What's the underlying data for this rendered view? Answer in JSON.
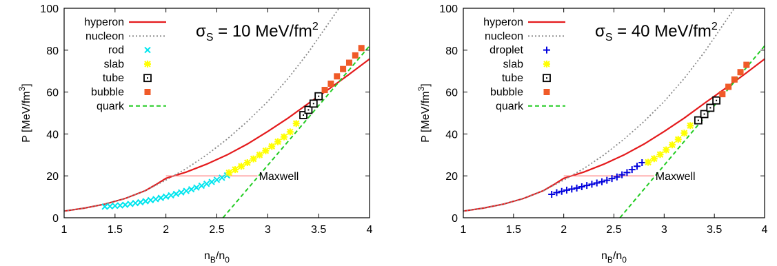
{
  "chart_data": [
    {
      "type": "line",
      "title": "σS = 10 MeV/fm2",
      "title_parts": {
        "sigma": "σ",
        "sub": "S",
        "text": " = 10 MeV/fm",
        "sup": "2"
      },
      "xlabel": {
        "base": "n",
        "sub1": "B",
        "mid": "/n",
        "sub2": "0"
      },
      "ylabel": {
        "text": "P [MeV/fm",
        "sup": "3",
        "close": "]"
      },
      "xlim": [
        1,
        4
      ],
      "ylim": [
        0,
        100
      ],
      "xticks": [
        "1",
        "1.5",
        "2",
        "2.5",
        "3",
        "3.5",
        "4"
      ],
      "yticks": [
        "0",
        "20",
        "40",
        "60",
        "80",
        "100"
      ],
      "grid": false,
      "legend_position": "top-left",
      "annotation": "Maxwell",
      "maxwell": {
        "x": [
          2.0,
          2.9
        ],
        "y": [
          20,
          20
        ]
      },
      "series": [
        {
          "name": "hyperon",
          "style": "line",
          "color": "#e41a1c",
          "x": [
            1.0,
            1.2,
            1.4,
            1.6,
            1.8,
            1.9,
            2.0,
            2.2,
            2.4,
            2.6,
            2.8,
            3.0,
            3.2,
            3.4,
            3.6,
            3.8,
            4.0
          ],
          "y": [
            3.2,
            4.6,
            6.5,
            9.2,
            13.0,
            15.8,
            18.8,
            21.8,
            25.6,
            30.0,
            35.2,
            41.2,
            47.6,
            54.6,
            61.4,
            68.5,
            75.8
          ]
        },
        {
          "name": "nucleon",
          "style": "dotted",
          "color": "#888888",
          "x": [
            1.0,
            1.2,
            1.4,
            1.6,
            1.8,
            2.0,
            2.2,
            2.4,
            2.6,
            2.8,
            3.0,
            3.2,
            3.4,
            3.6,
            3.7
          ],
          "y": [
            3.2,
            4.6,
            6.5,
            9.2,
            13.0,
            18.0,
            23.5,
            30.0,
            37.5,
            46.0,
            55.5,
            66.5,
            79.0,
            93.0,
            100.0
          ]
        },
        {
          "name": "rod",
          "style": "marker",
          "marker": "cross",
          "color": "#00e5ee",
          "x": [
            1.4,
            1.45,
            1.5,
            1.55,
            1.6,
            1.65,
            1.7,
            1.75,
            1.8,
            1.85,
            1.9,
            1.95,
            2.0,
            2.05,
            2.1,
            2.15,
            2.2,
            2.25,
            2.3,
            2.35,
            2.4,
            2.45,
            2.5,
            2.55,
            2.6
          ],
          "y": [
            5.3,
            5.5,
            5.7,
            5.9,
            6.2,
            6.6,
            7.0,
            7.4,
            7.9,
            8.4,
            8.9,
            9.5,
            10.1,
            10.7,
            11.4,
            12.1,
            12.8,
            13.6,
            14.4,
            15.3,
            16.2,
            17.1,
            18.1,
            19.1,
            20.2
          ]
        },
        {
          "name": "slab",
          "style": "marker",
          "marker": "star",
          "color": "#ffff00",
          "x": [
            2.62,
            2.68,
            2.74,
            2.8,
            2.86,
            2.92,
            2.98,
            3.04,
            3.1,
            3.16,
            3.22,
            3.28
          ],
          "y": [
            21.5,
            23.0,
            24.6,
            26.3,
            28.1,
            30.0,
            32.0,
            34.1,
            36.3,
            38.6,
            41.0,
            45.0
          ]
        },
        {
          "name": "tube",
          "style": "marker",
          "marker": "square",
          "color": "#000000",
          "x": [
            3.35,
            3.4,
            3.45,
            3.5
          ],
          "y": [
            49.0,
            51.5,
            54.5,
            58.0
          ]
        },
        {
          "name": "bubble",
          "style": "marker",
          "marker": "filled-square",
          "color": "#f05a28",
          "x": [
            3.56,
            3.62,
            3.68,
            3.74,
            3.8,
            3.86,
            3.92
          ],
          "y": [
            61.0,
            64.0,
            67.5,
            71.0,
            74.0,
            77.5,
            81.0
          ]
        },
        {
          "name": "quark",
          "style": "dashed",
          "color": "#22cc22",
          "x": [
            2.56,
            4.0
          ],
          "y": [
            0,
            82
          ]
        }
      ]
    },
    {
      "type": "line",
      "title": "σS = 40 MeV/fm2",
      "title_parts": {
        "sigma": "σ",
        "sub": "S",
        "text": " = 40 MeV/fm",
        "sup": "2"
      },
      "xlabel": {
        "base": "n",
        "sub1": "B",
        "mid": "/n",
        "sub2": "0"
      },
      "ylabel": {
        "text": "P [MeV/fm",
        "sup": "3",
        "close": "]"
      },
      "xlim": [
        1,
        4
      ],
      "ylim": [
        0,
        100
      ],
      "xticks": [
        "1",
        "1.5",
        "2",
        "2.5",
        "3",
        "3.5",
        "4"
      ],
      "yticks": [
        "0",
        "20",
        "40",
        "60",
        "80",
        "100"
      ],
      "grid": false,
      "legend_position": "top-left",
      "annotation": "Maxwell",
      "maxwell": {
        "x": [
          2.0,
          2.9
        ],
        "y": [
          20,
          20
        ]
      },
      "series": [
        {
          "name": "hyperon",
          "style": "line",
          "color": "#e41a1c",
          "x": [
            1.0,
            1.2,
            1.4,
            1.6,
            1.8,
            1.9,
            2.0,
            2.2,
            2.4,
            2.6,
            2.8,
            3.0,
            3.2,
            3.4,
            3.6,
            3.8,
            4.0
          ],
          "y": [
            3.2,
            4.6,
            6.5,
            9.2,
            13.0,
            15.8,
            18.8,
            21.8,
            25.6,
            30.0,
            35.2,
            41.2,
            47.6,
            54.6,
            61.4,
            68.5,
            75.8
          ]
        },
        {
          "name": "nucleon",
          "style": "dotted",
          "color": "#888888",
          "x": [
            1.0,
            1.2,
            1.4,
            1.6,
            1.8,
            2.0,
            2.2,
            2.4,
            2.6,
            2.8,
            3.0,
            3.2,
            3.4,
            3.6,
            3.7
          ],
          "y": [
            3.2,
            4.6,
            6.5,
            9.2,
            13.0,
            18.0,
            23.5,
            30.0,
            37.5,
            46.0,
            55.5,
            66.5,
            79.0,
            93.0,
            100.0
          ]
        },
        {
          "name": "droplet",
          "style": "marker",
          "marker": "plus",
          "color": "#0000dd",
          "x": [
            1.88,
            1.93,
            1.98,
            2.03,
            2.08,
            2.13,
            2.18,
            2.23,
            2.28,
            2.33,
            2.38,
            2.43,
            2.48,
            2.53,
            2.58,
            2.63,
            2.68,
            2.73,
            2.78
          ],
          "y": [
            11.2,
            12.0,
            12.6,
            13.2,
            13.7,
            14.2,
            14.8,
            15.4,
            16.0,
            16.6,
            17.2,
            17.9,
            18.7,
            19.5,
            20.5,
            21.6,
            23.0,
            24.6,
            26.3
          ]
        },
        {
          "name": "slab",
          "style": "marker",
          "marker": "star",
          "color": "#ffff00",
          "x": [
            2.84,
            2.9,
            2.96,
            3.02,
            3.08,
            3.14,
            3.2,
            3.26
          ],
          "y": [
            26.5,
            28.2,
            30.2,
            32.4,
            34.8,
            37.4,
            40.4,
            44.0
          ]
        },
        {
          "name": "tube",
          "style": "marker",
          "marker": "square",
          "color": "#000000",
          "x": [
            3.34,
            3.4,
            3.46,
            3.52
          ],
          "y": [
            46.5,
            49.5,
            52.5,
            56.0
          ]
        },
        {
          "name": "bubble",
          "style": "marker",
          "marker": "filled-square",
          "color": "#f05a28",
          "x": [
            3.58,
            3.64,
            3.7,
            3.76,
            3.82
          ],
          "y": [
            59.0,
            62.5,
            66.0,
            69.5,
            73.0
          ]
        },
        {
          "name": "quark",
          "style": "dashed",
          "color": "#22cc22",
          "x": [
            2.56,
            4.0
          ],
          "y": [
            0,
            82
          ]
        }
      ]
    }
  ]
}
